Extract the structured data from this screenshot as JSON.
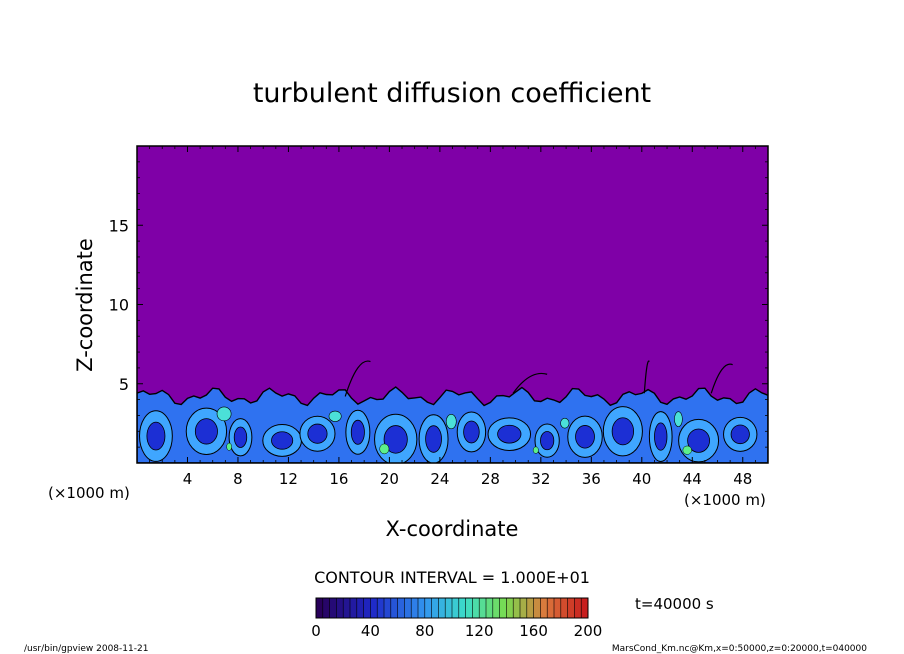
{
  "chart_data": {
    "type": "heatmap",
    "title": "turbulent diffusion coefficient",
    "xlabel": "X-coordinate",
    "ylabel": "Z-coordinate",
    "x_unit": "(×1000 m)",
    "y_unit": "(×1000 m)",
    "xlim": [
      0,
      50
    ],
    "ylim": [
      0,
      20
    ],
    "x_ticks": [
      4,
      8,
      12,
      16,
      20,
      24,
      28,
      32,
      36,
      40,
      44,
      48
    ],
    "y_ticks": [
      5,
      10,
      15
    ],
    "contour_interval_text": "CONTOUR INTERVAL = 1.000E+01",
    "time_text": "t=40000 s",
    "colorbar": {
      "min": 0,
      "max": 200,
      "ticks": [
        0,
        40,
        80,
        120,
        160,
        200
      ]
    },
    "background_value": 0,
    "turbulent_layer_top": 4.6,
    "colors": {
      "background": "#7f00a7",
      "deep_blue": "#1c2fd4",
      "mid_blue": "#2f72f0",
      "light_blue": "#3fa6ff",
      "cyan": "#4be0d8",
      "green": "#5cf08a"
    }
  },
  "footer": {
    "left": "/usr/bin/gpview  2008-11-21",
    "right": "MarsCond_Km.nc@Km,x=0:50000,z=0:20000,t=040000"
  }
}
